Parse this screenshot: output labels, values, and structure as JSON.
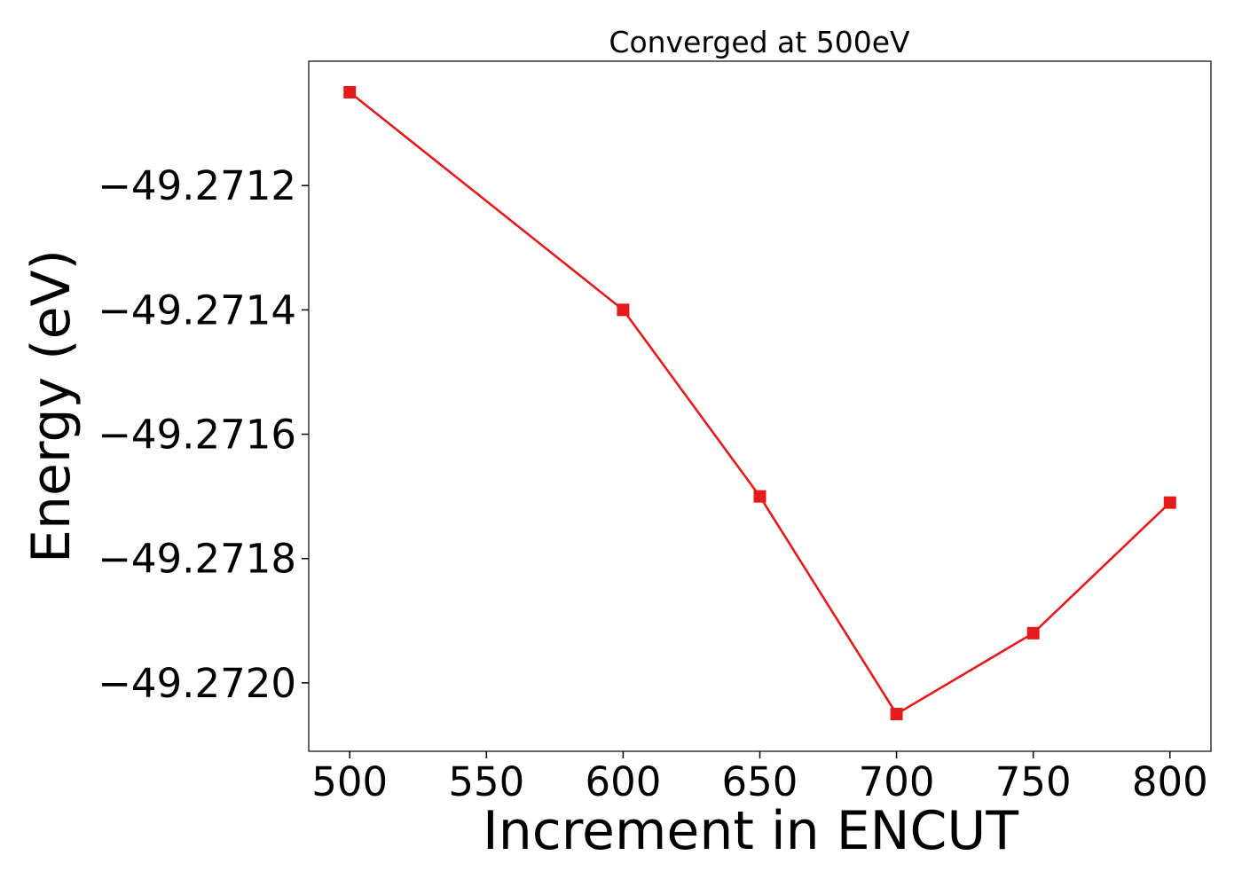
{
  "chart_data": {
    "type": "line",
    "title": "Converged at 500eV",
    "xlabel": "Increment in ENCUT",
    "ylabel": "Energy (eV)",
    "x": [
      500,
      600,
      650,
      700,
      750,
      800
    ],
    "series": [
      {
        "values": [
          -49.27105,
          -49.2714,
          -49.2717,
          -49.27205,
          -49.27192,
          -49.27171
        ],
        "color": "#e41a1c",
        "marker": "square"
      }
    ],
    "xticks": [
      500,
      550,
      600,
      650,
      700,
      750,
      800
    ],
    "xtick_labels": [
      "500",
      "550",
      "600",
      "650",
      "700",
      "750",
      "800"
    ],
    "yticks": [
      -49.2712,
      -49.2714,
      -49.2716,
      -49.2718,
      -49.272
    ],
    "ytick_labels": [
      "−49.2712",
      "−49.2714",
      "−49.2716",
      "−49.2718",
      "−49.2720"
    ],
    "xlim": [
      485,
      815
    ],
    "ylim": [
      -49.27211,
      -49.271
    ],
    "grid": false,
    "legend": "none"
  }
}
